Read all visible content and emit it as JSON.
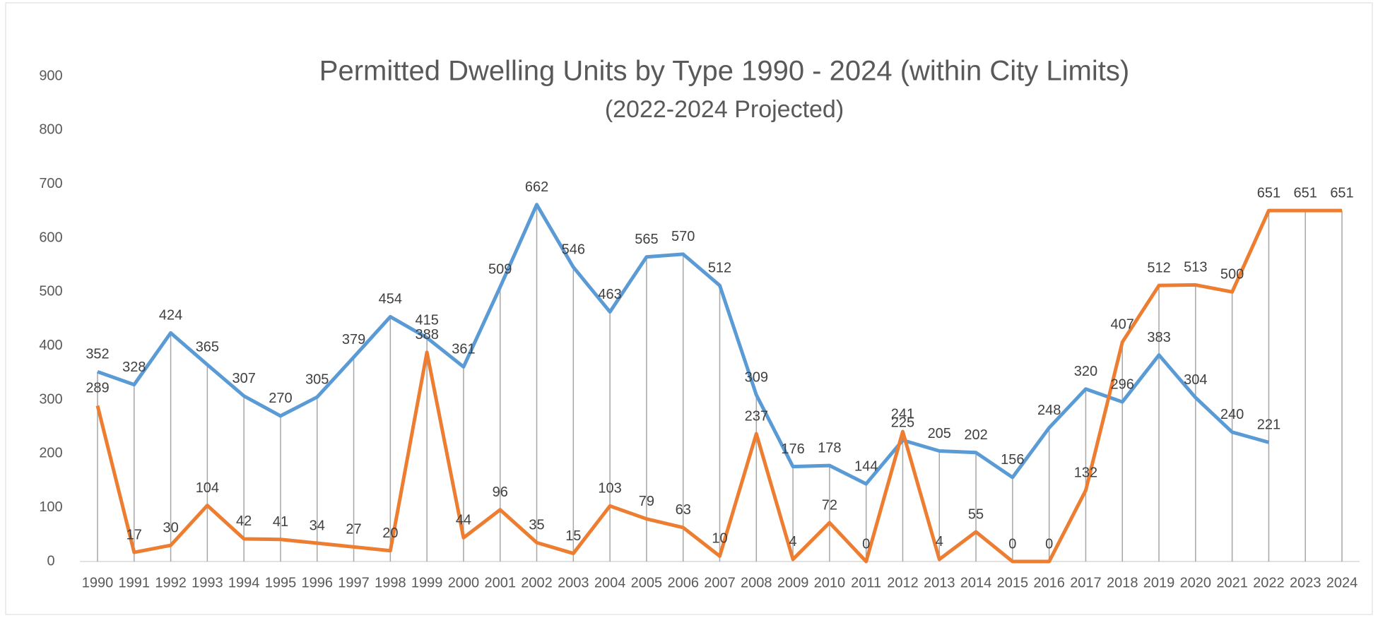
{
  "chart_data": {
    "type": "line",
    "title": "Permitted Dwelling Units by Type 1990 - 2024 (within City Limits)",
    "subtitle": "(2022-2024 Projected)",
    "categories": [
      "1990",
      "1991",
      "1992",
      "1993",
      "1994",
      "1995",
      "1996",
      "1997",
      "1998",
      "1999",
      "2000",
      "2001",
      "2002",
      "2003",
      "2004",
      "2005",
      "2006",
      "2007",
      "2008",
      "2009",
      "2010",
      "2011",
      "2012",
      "2013",
      "2014",
      "2015",
      "2016",
      "2017",
      "2018",
      "2019",
      "2020",
      "2021",
      "2022",
      "2023",
      "2024"
    ],
    "series": [
      {
        "color": "#5b9bd5",
        "values": [
          352,
          328,
          424,
          365,
          307,
          270,
          305,
          379,
          454,
          415,
          361,
          509,
          662,
          546,
          463,
          565,
          570,
          512,
          309,
          176,
          178,
          144,
          225,
          205,
          202,
          156,
          248,
          320,
          296,
          383,
          304,
          240,
          221,
          null,
          null
        ]
      },
      {
        "color": "#ed7d31",
        "values": [
          289,
          17,
          30,
          104,
          42,
          41,
          34,
          27,
          20,
          388,
          44,
          96,
          35,
          15,
          103,
          79,
          63,
          10,
          237,
          4,
          72,
          0,
          241,
          4,
          55,
          0,
          0,
          132,
          407,
          512,
          513,
          500,
          651,
          651,
          651
        ]
      }
    ],
    "ylim": [
      0,
      900
    ],
    "yticks": [
      0,
      100,
      200,
      300,
      400,
      500,
      600,
      700,
      800,
      900
    ],
    "drop_lines": true
  }
}
